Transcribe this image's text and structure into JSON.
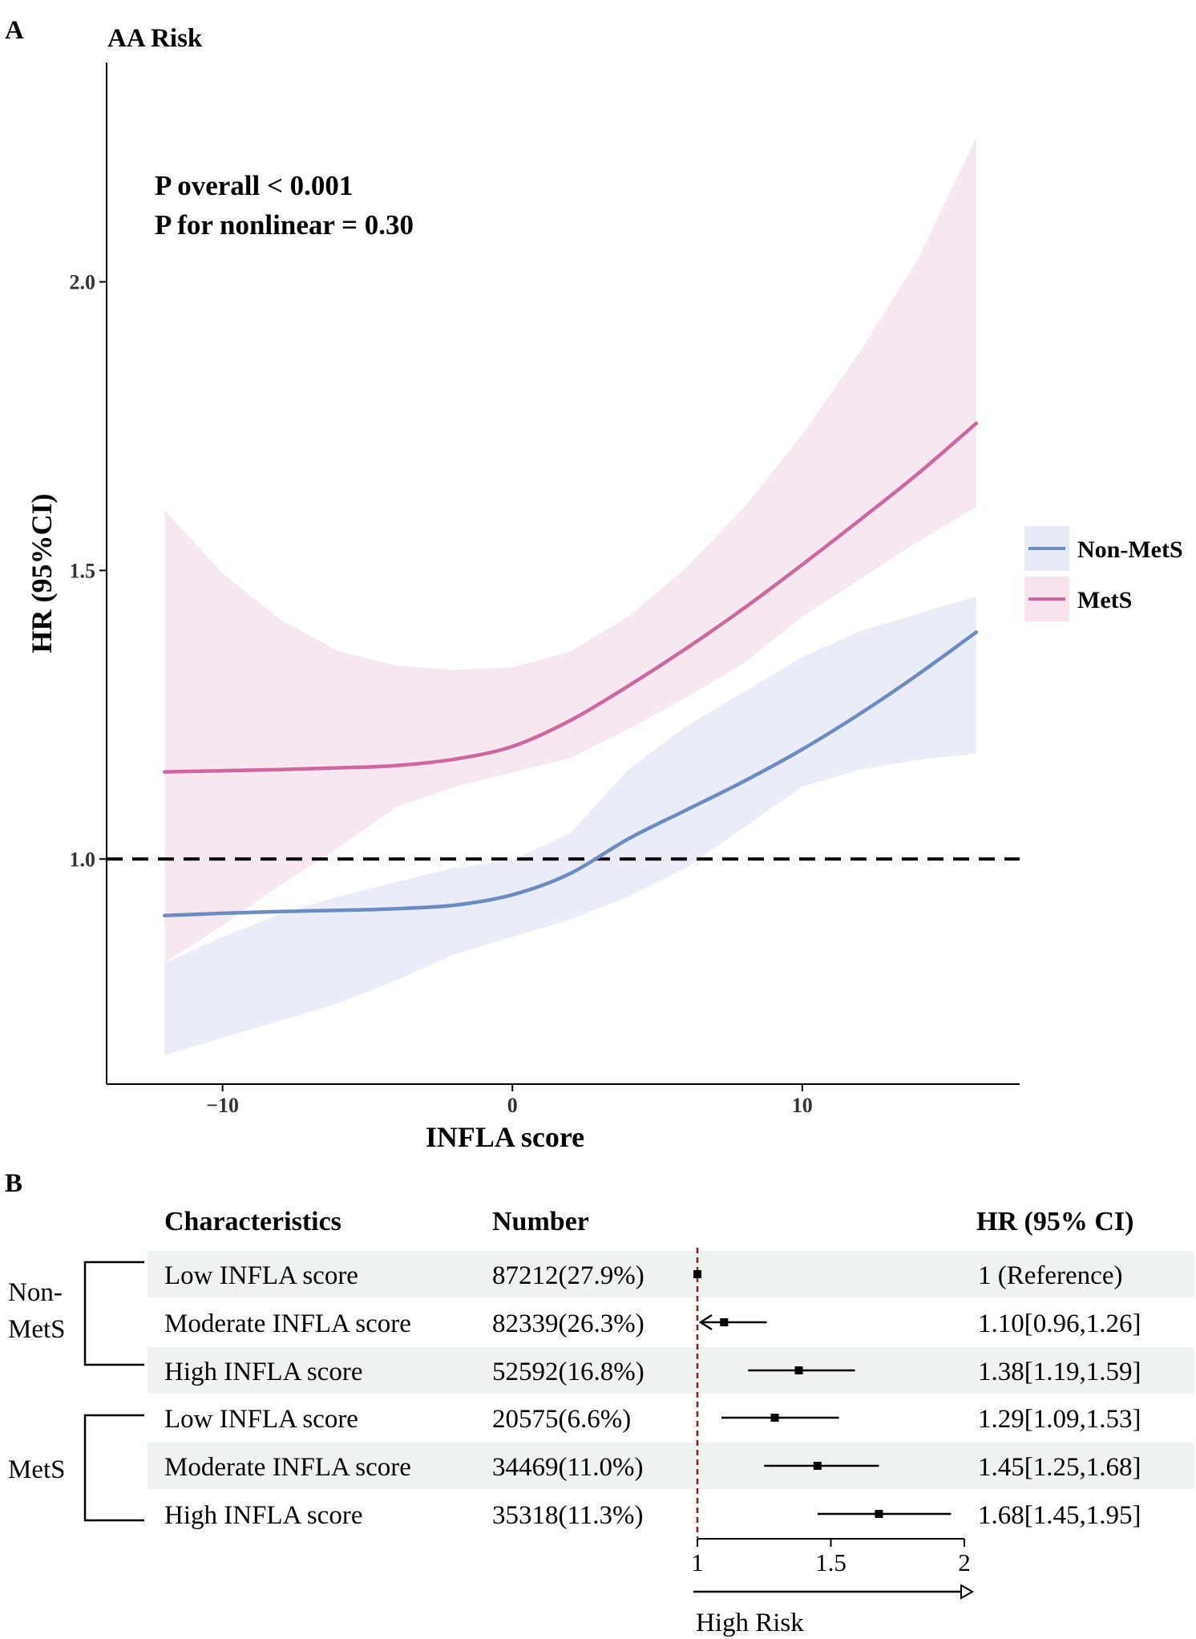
{
  "panel_a": {
    "label": "A",
    "title": "AA Risk",
    "annotations": [
      "P overall < 0.001",
      "P for nonlinear = 0.30"
    ]
  },
  "panel_b": {
    "label": "B"
  },
  "colors": {
    "non_mets": "#6b8cc2",
    "non_mets_band": "#e6eaf6",
    "mets": "#d066a0",
    "mets_band": "#f6e3ee",
    "reference_line": "#000000",
    "forest_reference": "#8b1a1a",
    "row_shade": "#eef2f1"
  },
  "chart_data": [
    {
      "type": "line",
      "title": "AA Risk",
      "xlabel": "INFLA score",
      "ylabel": "HR (95%CI)",
      "xlim": [
        -14,
        17.5
      ],
      "ylim": [
        0.61,
        2.38
      ],
      "x_ticks": [
        -10,
        0,
        10
      ],
      "x_tick_labels": [
        "−10",
        "0",
        "10"
      ],
      "y_ticks": [
        1.0,
        1.5,
        2.0
      ],
      "y_tick_labels": [
        "1.0",
        "1.5",
        "2.0"
      ],
      "reference_y": 1.0,
      "legend": {
        "position": "right",
        "entries": [
          "Non-MetS",
          "MetS"
        ]
      },
      "x": [
        -12,
        -10,
        -8,
        -6,
        -4,
        -2,
        0,
        2,
        4,
        6,
        8,
        10,
        12,
        14,
        16
      ],
      "series": [
        {
          "name": "Non-MetS",
          "values": [
            0.902,
            0.906,
            0.909,
            0.911,
            0.914,
            0.92,
            0.938,
            0.975,
            1.035,
            1.085,
            1.135,
            1.19,
            1.252,
            1.32,
            1.393
          ],
          "lower": [
            0.66,
            0.69,
            0.72,
            0.75,
            0.79,
            0.835,
            0.865,
            0.895,
            0.935,
            0.985,
            1.055,
            1.125,
            1.155,
            1.172,
            1.183
          ],
          "upper": [
            0.82,
            0.865,
            0.905,
            0.935,
            0.96,
            0.985,
            0.998,
            1.045,
            1.155,
            1.23,
            1.29,
            1.35,
            1.395,
            1.425,
            1.455
          ]
        },
        {
          "name": "MetS",
          "values": [
            1.151,
            1.153,
            1.155,
            1.158,
            1.162,
            1.173,
            1.195,
            1.24,
            1.3,
            1.365,
            1.435,
            1.51,
            1.588,
            1.668,
            1.755
          ],
          "lower": [
            0.82,
            0.885,
            0.955,
            1.02,
            1.09,
            1.125,
            1.15,
            1.175,
            1.225,
            1.28,
            1.34,
            1.42,
            1.485,
            1.55,
            1.61
          ],
          "upper": [
            1.605,
            1.495,
            1.415,
            1.36,
            1.335,
            1.328,
            1.332,
            1.36,
            1.42,
            1.505,
            1.61,
            1.735,
            1.88,
            2.04,
            2.25
          ]
        }
      ]
    },
    {
      "type": "table",
      "columns": [
        "Characteristics",
        "Number",
        "HR (95% CI)"
      ],
      "groups": [
        {
          "name": "Non-MetS",
          "label_lines": [
            "Non-",
            "MetS"
          ]
        },
        {
          "name": "MetS",
          "label_lines": [
            "MetS"
          ]
        }
      ],
      "rows": [
        {
          "group": "Non-MetS",
          "characteristic": "Low INFLA score",
          "number": "87212(27.9%)",
          "hr_text": "1 (Reference)",
          "hr": 1.0,
          "lower": 1.0,
          "upper": 1.0,
          "reference": true
        },
        {
          "group": "Non-MetS",
          "characteristic": "Moderate INFLA score",
          "number": "82339(26.3%)",
          "hr_text": "1.10[0.96,1.26]",
          "hr": 1.1,
          "lower": 0.96,
          "upper": 1.26,
          "clipped_low": true
        },
        {
          "group": "Non-MetS",
          "characteristic": "High INFLA score",
          "number": "52592(16.8%)",
          "hr_text": "1.38[1.19,1.59]",
          "hr": 1.38,
          "lower": 1.19,
          "upper": 1.59
        },
        {
          "group": "MetS",
          "characteristic": "Low INFLA score",
          "number": "20575(6.6%)",
          "hr_text": "1.29[1.09,1.53]",
          "hr": 1.29,
          "lower": 1.09,
          "upper": 1.53
        },
        {
          "group": "MetS",
          "characteristic": "Moderate INFLA score",
          "number": "34469(11.0%)",
          "hr_text": "1.45[1.25,1.68]",
          "hr": 1.45,
          "lower": 1.25,
          "upper": 1.68
        },
        {
          "group": "MetS",
          "characteristic": "High INFLA score",
          "number": "35318(11.3%)",
          "hr_text": "1.68[1.45,1.95]",
          "hr": 1.68,
          "lower": 1.45,
          "upper": 1.95
        }
      ],
      "axis": {
        "min": 1,
        "max": 2,
        "ticks": [
          1,
          1.5,
          2
        ],
        "tick_labels": [
          "1",
          "1.5",
          "2"
        ],
        "arrow_label": "High Risk"
      },
      "shaded_rows": [
        0,
        2,
        4
      ]
    }
  ]
}
